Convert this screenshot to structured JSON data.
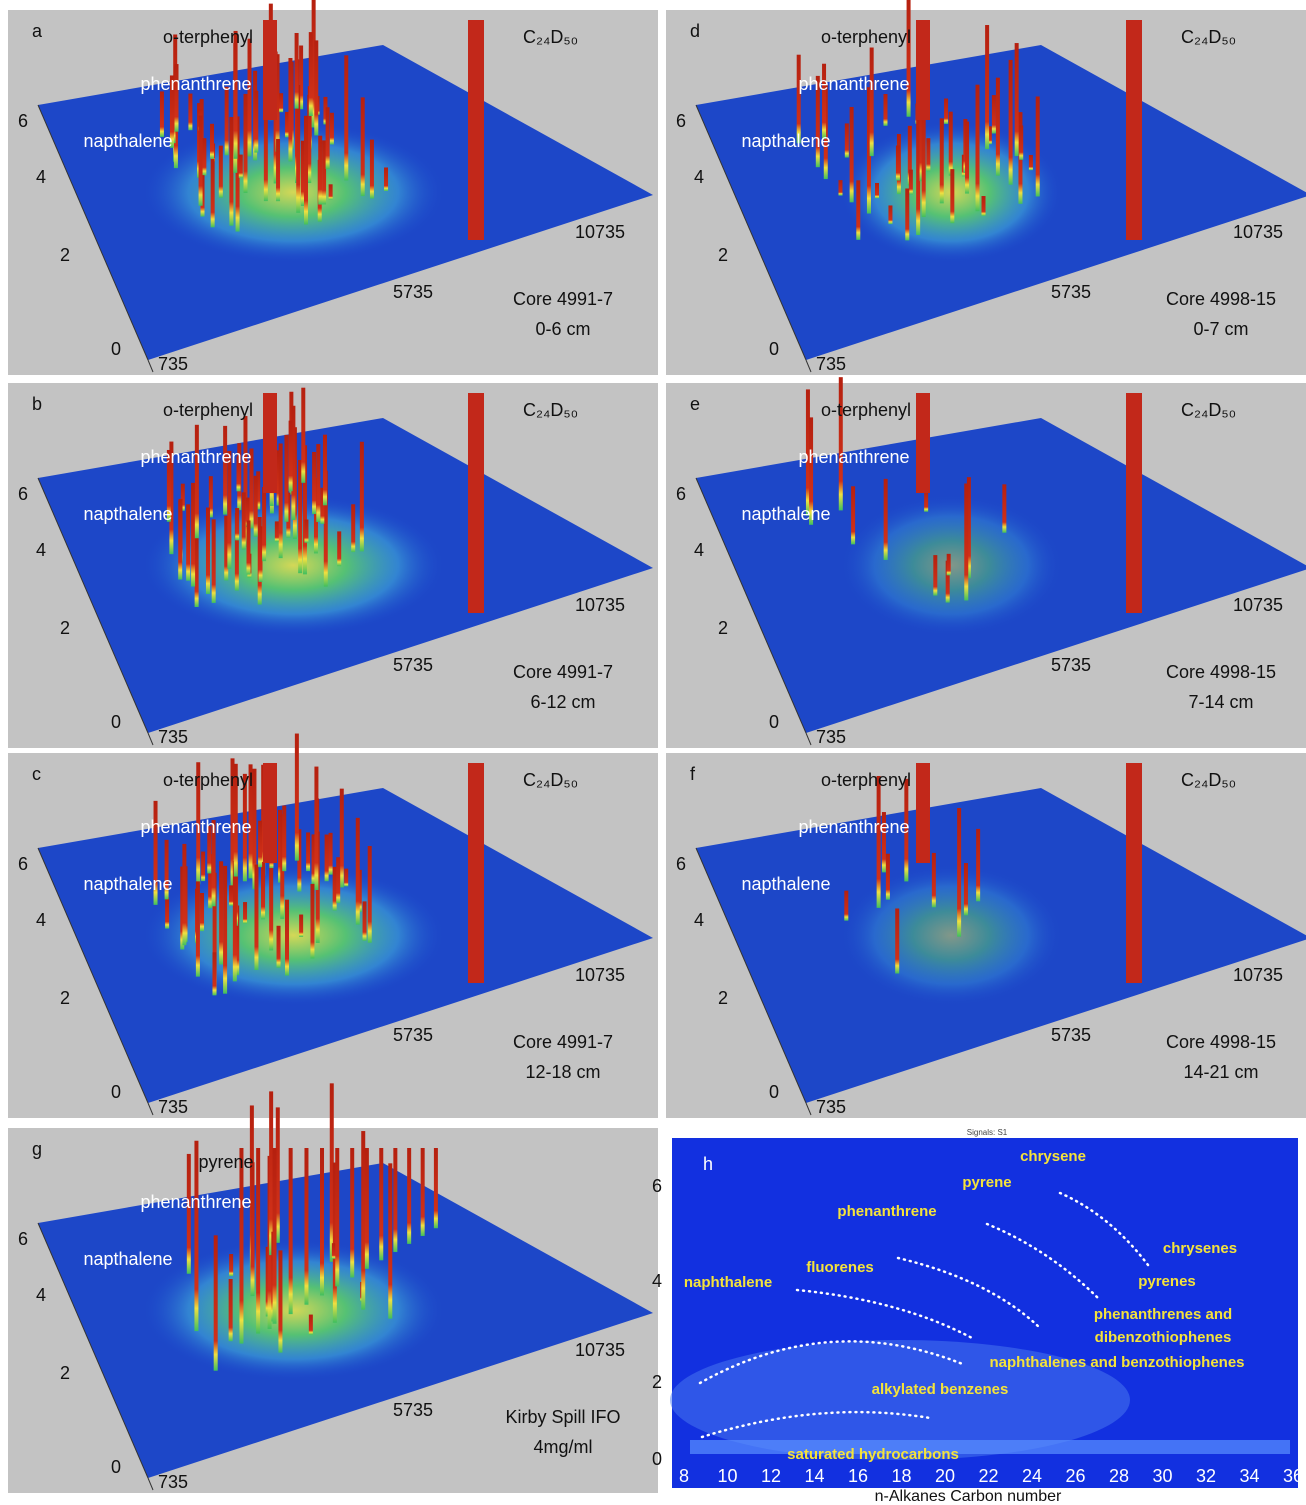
{
  "panels": [
    {
      "letter": "a",
      "compounds": {
        "o_terphenyl": "o-terphenyl",
        "phenanthrene": "phenanthrene",
        "napthalene": "napthalene",
        "internal_standard": "C₂₄D₅₀"
      },
      "y_ticks": [
        "6",
        "4",
        "2",
        "0"
      ],
      "x_ticks": [
        "735",
        "5735",
        "10735"
      ],
      "sample": "Core 4991-7",
      "depth": "0-6 cm"
    },
    {
      "letter": "b",
      "compounds": {
        "o_terphenyl": "o-terphenyl",
        "phenanthrene": "phenanthrene",
        "napthalene": "napthalene",
        "internal_standard": "C₂₄D₅₀"
      },
      "y_ticks": [
        "6",
        "4",
        "2",
        "0"
      ],
      "x_ticks": [
        "735",
        "5735",
        "10735"
      ],
      "sample": "Core 4991-7",
      "depth": "6-12 cm"
    },
    {
      "letter": "c",
      "compounds": {
        "o_terphenyl": "o-terphenyl",
        "phenanthrene": "phenanthrene",
        "napthalene": "napthalene",
        "internal_standard": "C₂₄D₅₀"
      },
      "y_ticks": [
        "6",
        "4",
        "2",
        "0"
      ],
      "x_ticks": [
        "735",
        "5735",
        "10735"
      ],
      "sample": "Core 4991-7",
      "depth": "12-18 cm"
    },
    {
      "letter": "d",
      "compounds": {
        "o_terphenyl": "o-terphenyl",
        "phenanthrene": "phenanthrene",
        "napthalene": "napthalene",
        "internal_standard": "C₂₄D₅₀"
      },
      "y_ticks": [
        "6",
        "4",
        "2",
        "0"
      ],
      "x_ticks": [
        "735",
        "5735",
        "10735"
      ],
      "sample": "Core 4998-15",
      "depth": "0-7 cm"
    },
    {
      "letter": "e",
      "compounds": {
        "o_terphenyl": "o-terphenyl",
        "phenanthrene": "phenanthrene",
        "napthalene": "napthalene",
        "internal_standard": "C₂₄D₅₀"
      },
      "y_ticks": [
        "6",
        "4",
        "2",
        "0"
      ],
      "x_ticks": [
        "735",
        "5735",
        "10735"
      ],
      "sample": "Core 4998-15",
      "depth": "7-14 cm"
    },
    {
      "letter": "f",
      "compounds": {
        "o_terphenyl": "o-terphenyl",
        "phenanthrene": "phenanthrene",
        "napthalene": "napthalene",
        "internal_standard": "C₂₄D₅₀"
      },
      "y_ticks": [
        "6",
        "4",
        "2",
        "0"
      ],
      "x_ticks": [
        "735",
        "5735",
        "10735"
      ],
      "sample": "Core 4998-15",
      "depth": "14-21 cm"
    },
    {
      "letter": "g",
      "compounds": {
        "pyrene": "pyrene",
        "phenanthrene": "phenanthrene",
        "napthalene": "napthalene"
      },
      "y_ticks": [
        "6",
        "4",
        "2",
        "0"
      ],
      "x_ticks": [
        "735",
        "5735",
        "10735"
      ],
      "sample": "Kirby Spill IFO",
      "depth": "4mg/ml"
    }
  ],
  "panel_h": {
    "letter": "h",
    "signal": "Signals: S1",
    "y_ticks": [
      "6",
      "4",
      "2",
      "0"
    ],
    "x_ticks": [
      "8",
      "10",
      "12",
      "14",
      "16",
      "18",
      "20",
      "22",
      "24",
      "26",
      "28",
      "30",
      "32",
      "34",
      "36"
    ],
    "x_label": "n-Alkanes Carbon number",
    "annotations": [
      "chrysene",
      "pyrene",
      "phenanthrene",
      "fluorenes",
      "naphthalene",
      "chrysenes",
      "pyrenes",
      "phenanthrenes and",
      "dibenzothiophenes",
      "naphthalenes and benzothiophenes",
      "alkylated benzenes",
      "saturated hydrocarbons"
    ]
  }
}
